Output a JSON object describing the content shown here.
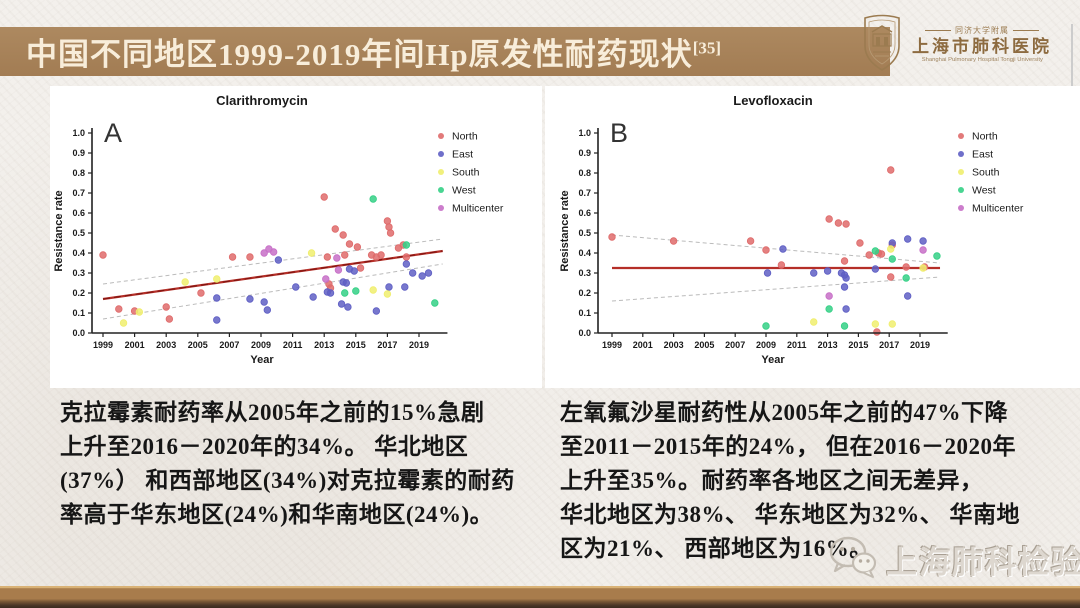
{
  "header": {
    "title": "中国不同地区1999-2019年间Hp原发性耐药现状",
    "reference": "[35]"
  },
  "logo": {
    "affiliation": "同济大学附属",
    "name_cn": "上海市肺科医院",
    "name_en": "Shanghai Pulmonary Hospital Tongji University"
  },
  "chart_data": [
    {
      "type": "scatter",
      "panel": "A",
      "title": "Clarithromycin",
      "xlabel": "Year",
      "ylabel": "Resistance rate",
      "xlim": [
        1998.3,
        2020.8
      ],
      "ylim": [
        0.0,
        1.0
      ],
      "x_ticks": [
        1999,
        2001,
        2003,
        2005,
        2007,
        2009,
        2011,
        2013,
        2015,
        2017,
        2019
      ],
      "y_ticks": [
        "0.0",
        "0.1",
        "0.2",
        "0.3",
        "0.4",
        "0.5",
        "0.6",
        "0.7",
        "0.8",
        "0.9",
        "1.0"
      ],
      "grid": false,
      "legend_position": "right",
      "series": [
        {
          "name": "North",
          "color": "#df6b6b",
          "points": [
            [
              1999,
              0.39
            ],
            [
              2000,
              0.12
            ],
            [
              2001,
              0.11
            ],
            [
              2003,
              0.13
            ],
            [
              2003.2,
              0.07
            ],
            [
              2005.2,
              0.2
            ],
            [
              2007.2,
              0.38
            ],
            [
              2008.3,
              0.38
            ],
            [
              2013,
              0.68
            ],
            [
              2013.2,
              0.38
            ],
            [
              2013.3,
              0.245
            ],
            [
              2013.4,
              0.225
            ],
            [
              2013.7,
              0.52
            ],
            [
              2014.2,
              0.49
            ],
            [
              2014.3,
              0.39
            ],
            [
              2014.6,
              0.445
            ],
            [
              2015.1,
              0.43
            ],
            [
              2015.3,
              0.325
            ],
            [
              2016,
              0.39
            ],
            [
              2016.3,
              0.38
            ],
            [
              2016.6,
              0.39
            ],
            [
              2017,
              0.56
            ],
            [
              2017.1,
              0.53
            ],
            [
              2017.2,
              0.5
            ],
            [
              2017.7,
              0.425
            ],
            [
              2018,
              0.44
            ],
            [
              2018.2,
              0.38
            ]
          ]
        },
        {
          "name": "East",
          "color": "#5f5fc4",
          "points": [
            [
              2006.2,
              0.065
            ],
            [
              2006.2,
              0.175
            ],
            [
              2008.3,
              0.17
            ],
            [
              2009.2,
              0.155
            ],
            [
              2009.4,
              0.115
            ],
            [
              2010.1,
              0.365
            ],
            [
              2011.2,
              0.23
            ],
            [
              2012.3,
              0.18
            ],
            [
              2013.2,
              0.205
            ],
            [
              2013.4,
              0.2
            ],
            [
              2014.1,
              0.145
            ],
            [
              2014.2,
              0.255
            ],
            [
              2014.4,
              0.25
            ],
            [
              2014.5,
              0.13
            ],
            [
              2014.6,
              0.32
            ],
            [
              2014.9,
              0.31
            ],
            [
              2016.3,
              0.11
            ],
            [
              2017.1,
              0.23
            ],
            [
              2018.1,
              0.23
            ],
            [
              2018.2,
              0.345
            ],
            [
              2018.6,
              0.3
            ],
            [
              2019.2,
              0.285
            ],
            [
              2019.6,
              0.3
            ]
          ]
        },
        {
          "name": "South",
          "color": "#f0ee6e",
          "points": [
            [
              2000.3,
              0.05
            ],
            [
              2001.3,
              0.105
            ],
            [
              2004.2,
              0.255
            ],
            [
              2006.2,
              0.27
            ],
            [
              2012.2,
              0.4
            ],
            [
              2016.1,
              0.215
            ],
            [
              2017,
              0.195
            ]
          ]
        },
        {
          "name": "West",
          "color": "#35d086",
          "points": [
            [
              2014.3,
              0.2
            ],
            [
              2015,
              0.21
            ],
            [
              2016.1,
              0.67
            ],
            [
              2018.2,
              0.44
            ],
            [
              2020,
              0.15
            ]
          ]
        },
        {
          "name": "Multicenter",
          "color": "#c76fc7",
          "points": [
            [
              2009.2,
              0.4
            ],
            [
              2009.5,
              0.42
            ],
            [
              2009.8,
              0.405
            ],
            [
              2013.1,
              0.27
            ],
            [
              2013.8,
              0.375
            ],
            [
              2013.9,
              0.315
            ]
          ]
        }
      ],
      "trend": {
        "color": "#b52f28",
        "dashed_overlay": true,
        "points": [
          [
            1999,
            0.17
          ],
          [
            2020.5,
            0.41
          ]
        ]
      },
      "ci": [
        {
          "points": [
            [
              1999,
              0.245
            ],
            [
              2020.5,
              0.47
            ]
          ]
        },
        {
          "points": [
            [
              1999,
              0.07
            ],
            [
              2020.5,
              0.345
            ]
          ]
        }
      ]
    },
    {
      "type": "scatter",
      "panel": "B",
      "title": "Levofloxacin",
      "xlabel": "Year",
      "ylabel": "Resistance rate",
      "xlim": [
        1998.3,
        2020.8
      ],
      "ylim": [
        0.0,
        1.0
      ],
      "x_ticks": [
        1999,
        2001,
        2003,
        2005,
        2007,
        2009,
        2011,
        2013,
        2015,
        2017,
        2019
      ],
      "y_ticks": [
        "0.0",
        "0.1",
        "0.2",
        "0.3",
        "0.4",
        "0.5",
        "0.6",
        "0.7",
        "0.8",
        "0.9",
        "1.0"
      ],
      "grid": false,
      "legend_position": "right",
      "series": [
        {
          "name": "North",
          "color": "#df6b6b",
          "points": [
            [
              1999,
              0.48
            ],
            [
              2003,
              0.46
            ],
            [
              2008,
              0.46
            ],
            [
              2009,
              0.415
            ],
            [
              2010,
              0.34
            ],
            [
              2013.1,
              0.57
            ],
            [
              2013.7,
              0.55
            ],
            [
              2014.2,
              0.545
            ],
            [
              2014.1,
              0.36
            ],
            [
              2015.1,
              0.45
            ],
            [
              2015.7,
              0.39
            ],
            [
              2016.3,
              0.4
            ],
            [
              2016.5,
              0.395
            ],
            [
              2016.2,
              0.005
            ],
            [
              2017.1,
              0.815
            ],
            [
              2017.2,
              0.44
            ],
            [
              2017.1,
              0.28
            ],
            [
              2018.1,
              0.33
            ],
            [
              2019.3,
              0.33
            ]
          ]
        },
        {
          "name": "East",
          "color": "#5f5fc4",
          "points": [
            [
              2009.1,
              0.3
            ],
            [
              2010.1,
              0.42
            ],
            [
              2012.1,
              0.3
            ],
            [
              2013,
              0.31
            ],
            [
              2013.9,
              0.3
            ],
            [
              2014.1,
              0.29
            ],
            [
              2014.2,
              0.275
            ],
            [
              2014.1,
              0.23
            ],
            [
              2014.2,
              0.12
            ],
            [
              2016.1,
              0.32
            ],
            [
              2017.2,
              0.45
            ],
            [
              2018.2,
              0.47
            ],
            [
              2018.2,
              0.185
            ],
            [
              2019.2,
              0.46
            ]
          ]
        },
        {
          "name": "South",
          "color": "#f0ee6e",
          "points": [
            [
              2012.1,
              0.055
            ],
            [
              2016.1,
              0.045
            ],
            [
              2017.1,
              0.42
            ],
            [
              2017.2,
              0.045
            ],
            [
              2019.2,
              0.325
            ]
          ]
        },
        {
          "name": "West",
          "color": "#35d086",
          "points": [
            [
              2009,
              0.035
            ],
            [
              2013.1,
              0.12
            ],
            [
              2014.1,
              0.035
            ],
            [
              2016.1,
              0.41
            ],
            [
              2017.2,
              0.37
            ],
            [
              2018.1,
              0.275
            ],
            [
              2020.1,
              0.385
            ]
          ]
        },
        {
          "name": "Multicenter",
          "color": "#c76fc7",
          "points": [
            [
              2013.1,
              0.185
            ],
            [
              2019.2,
              0.415
            ]
          ]
        }
      ],
      "trend": {
        "color": "#b52f28",
        "dashed_overlay": false,
        "points": [
          [
            1999,
            0.325
          ],
          [
            2020.3,
            0.325
          ]
        ]
      },
      "ci": [
        {
          "points": [
            [
              1999,
              0.49
            ],
            [
              2020.3,
              0.35
            ]
          ]
        },
        {
          "points": [
            [
              1999,
              0.16
            ],
            [
              2020.3,
              0.28
            ]
          ]
        }
      ]
    }
  ],
  "notes": {
    "left_lines": [
      "克拉霉素耐药率从2005年之前的15%急剧",
      "上升至2016－2020年的34%。 华北地区",
      "(37%） 和西部地区(34%)对克拉霉素的耐药",
      "率高于华东地区(24%)和华南地区(24%)。"
    ],
    "right_lines": [
      "左氧氟沙星耐药性从2005年之前的47%下降",
      "至2011－2015年的24%， 但在2016－2020年",
      "上升至35%。耐药率各地区之间无差异，",
      "华北地区为38%、 华东地区为32%、 华南地",
      "区为21%、 西部地区为16%。"
    ]
  },
  "watermark": {
    "label": "上海肺科检验"
  },
  "colors": {
    "title_bar": "#a6825a",
    "title_text": "#f8edda",
    "logo_brown": "#8d6b40",
    "trend_line": "#b52f28",
    "ci_line": "#bbbbbb",
    "bottom_bar": "#a87c4c"
  }
}
